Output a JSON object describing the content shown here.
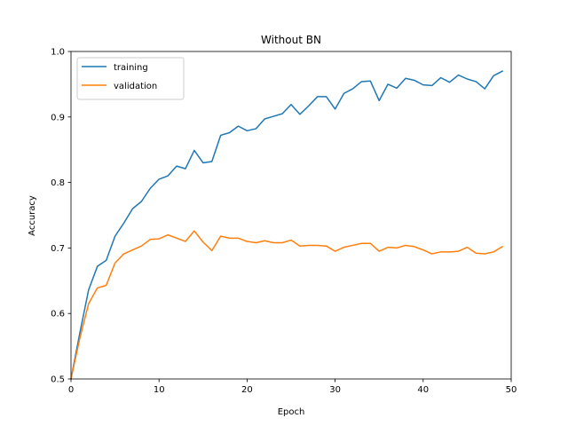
{
  "chart_data": {
    "type": "line",
    "title": "Without BN",
    "xlabel": "Epoch",
    "ylabel": "Accuracy",
    "xlim": [
      0,
      50
    ],
    "ylim": [
      0.5,
      1.0
    ],
    "xticks": [
      "0",
      "10",
      "20",
      "30",
      "40",
      "50"
    ],
    "yticks": [
      "0.5",
      "0.6",
      "0.7",
      "0.8",
      "0.9",
      "1.0"
    ],
    "grid": false,
    "legend_position": "top-left",
    "x": [
      0,
      1,
      2,
      3,
      4,
      5,
      6,
      7,
      8,
      9,
      10,
      11,
      12,
      13,
      14,
      15,
      16,
      17,
      18,
      19,
      20,
      21,
      22,
      23,
      24,
      25,
      26,
      27,
      28,
      29,
      30,
      31,
      32,
      33,
      34,
      35,
      36,
      37,
      38,
      39,
      40,
      41,
      42,
      43,
      44,
      45,
      46,
      47,
      48,
      49
    ],
    "series": [
      {
        "name": "training",
        "color": "#1f77b4",
        "values": [
          0.5,
          0.57,
          0.636,
          0.672,
          0.681,
          0.718,
          0.738,
          0.76,
          0.771,
          0.791,
          0.805,
          0.81,
          0.825,
          0.821,
          0.849,
          0.83,
          0.832,
          0.872,
          0.876,
          0.886,
          0.879,
          0.882,
          0.897,
          0.901,
          0.905,
          0.919,
          0.904,
          0.917,
          0.931,
          0.931,
          0.912,
          0.936,
          0.943,
          0.954,
          0.955,
          0.925,
          0.95,
          0.944,
          0.959,
          0.956,
          0.949,
          0.948,
          0.96,
          0.953,
          0.964,
          0.958,
          0.954,
          0.943,
          0.963,
          0.97
        ]
      },
      {
        "name": "validation",
        "color": "#ff7f0e",
        "values": [
          0.5,
          0.562,
          0.615,
          0.639,
          0.643,
          0.677,
          0.691,
          0.697,
          0.703,
          0.713,
          0.714,
          0.72,
          0.715,
          0.71,
          0.726,
          0.709,
          0.696,
          0.718,
          0.715,
          0.715,
          0.71,
          0.708,
          0.711,
          0.708,
          0.708,
          0.712,
          0.703,
          0.704,
          0.704,
          0.703,
          0.695,
          0.701,
          0.704,
          0.707,
          0.707,
          0.695,
          0.701,
          0.7,
          0.704,
          0.702,
          0.697,
          0.691,
          0.694,
          0.694,
          0.695,
          0.701,
          0.692,
          0.691,
          0.694,
          0.702
        ]
      }
    ]
  }
}
